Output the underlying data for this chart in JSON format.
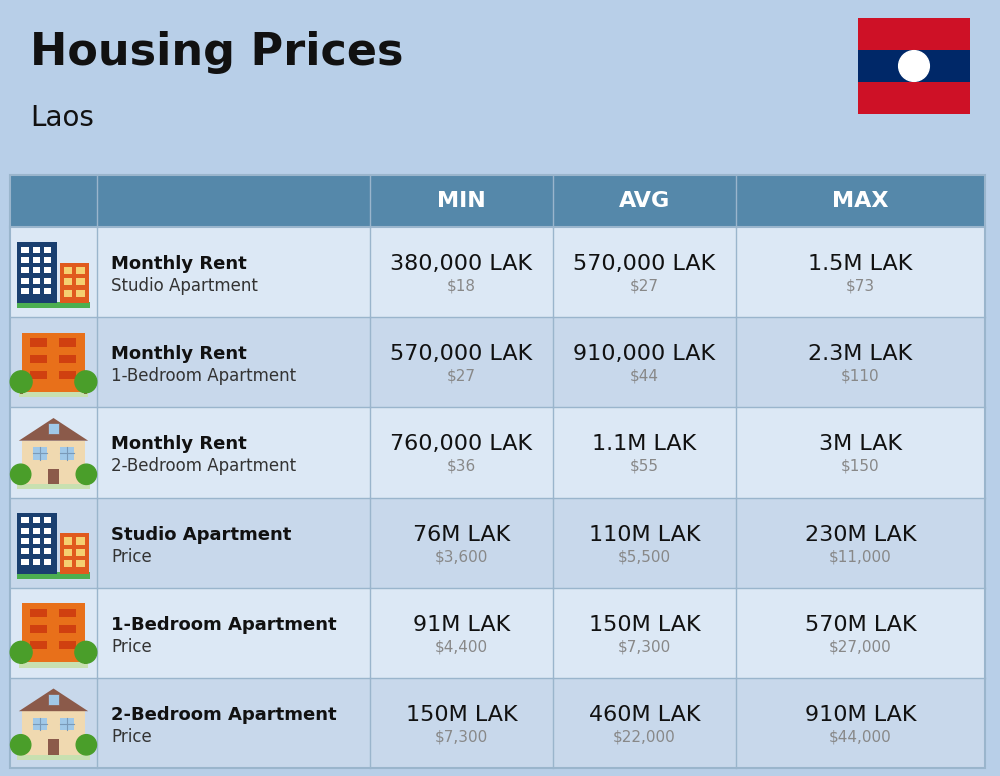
{
  "title": "Housing Prices",
  "subtitle": "Laos",
  "bg_color": "#b8cfe8",
  "header_bg": "#5588aa",
  "header_text_color": "#ffffff",
  "row_bg_odd": "#dce8f5",
  "row_bg_even": "#c8d8eb",
  "col_line_color": "#9ab5cc",
  "header_labels": [
    "MIN",
    "AVG",
    "MAX"
  ],
  "rows": [
    {
      "bold_label": "Monthly Rent",
      "sub_label": "Studio Apartment",
      "min_lak": "380,000 LAK",
      "min_usd": "$18",
      "avg_lak": "570,000 LAK",
      "avg_usd": "$27",
      "max_lak": "1.5M LAK",
      "max_usd": "$73",
      "icon_type": "studio_blue"
    },
    {
      "bold_label": "Monthly Rent",
      "sub_label": "1-Bedroom Apartment",
      "min_lak": "570,000 LAK",
      "min_usd": "$27",
      "avg_lak": "910,000 LAK",
      "avg_usd": "$44",
      "max_lak": "2.3M LAK",
      "max_usd": "$110",
      "icon_type": "bedroom1_orange"
    },
    {
      "bold_label": "Monthly Rent",
      "sub_label": "2-Bedroom Apartment",
      "min_lak": "760,000 LAK",
      "min_usd": "$36",
      "avg_lak": "1.1M LAK",
      "avg_usd": "$55",
      "max_lak": "3M LAK",
      "max_usd": "$150",
      "icon_type": "bedroom2_beige"
    },
    {
      "bold_label": "Studio Apartment",
      "sub_label": "Price",
      "min_lak": "76M LAK",
      "min_usd": "$3,600",
      "avg_lak": "110M LAK",
      "avg_usd": "$5,500",
      "max_lak": "230M LAK",
      "max_usd": "$11,000",
      "icon_type": "studio_blue"
    },
    {
      "bold_label": "1-Bedroom Apartment",
      "sub_label": "Price",
      "min_lak": "91M LAK",
      "min_usd": "$4,400",
      "avg_lak": "150M LAK",
      "avg_usd": "$7,300",
      "max_lak": "570M LAK",
      "max_usd": "$27,000",
      "icon_type": "bedroom1_orange"
    },
    {
      "bold_label": "2-Bedroom Apartment",
      "sub_label": "Price",
      "min_lak": "150M LAK",
      "min_usd": "$7,300",
      "avg_lak": "460M LAK",
      "avg_usd": "$22,000",
      "max_lak": "910M LAK",
      "max_usd": "$44,000",
      "icon_type": "bedroom2_beige"
    }
  ],
  "flag_red": "#CE1126",
  "flag_blue": "#002868",
  "lak_fontsize": 16,
  "usd_fontsize": 11,
  "bold_label_fontsize": 13,
  "sub_label_fontsize": 12,
  "header_fontsize": 16
}
